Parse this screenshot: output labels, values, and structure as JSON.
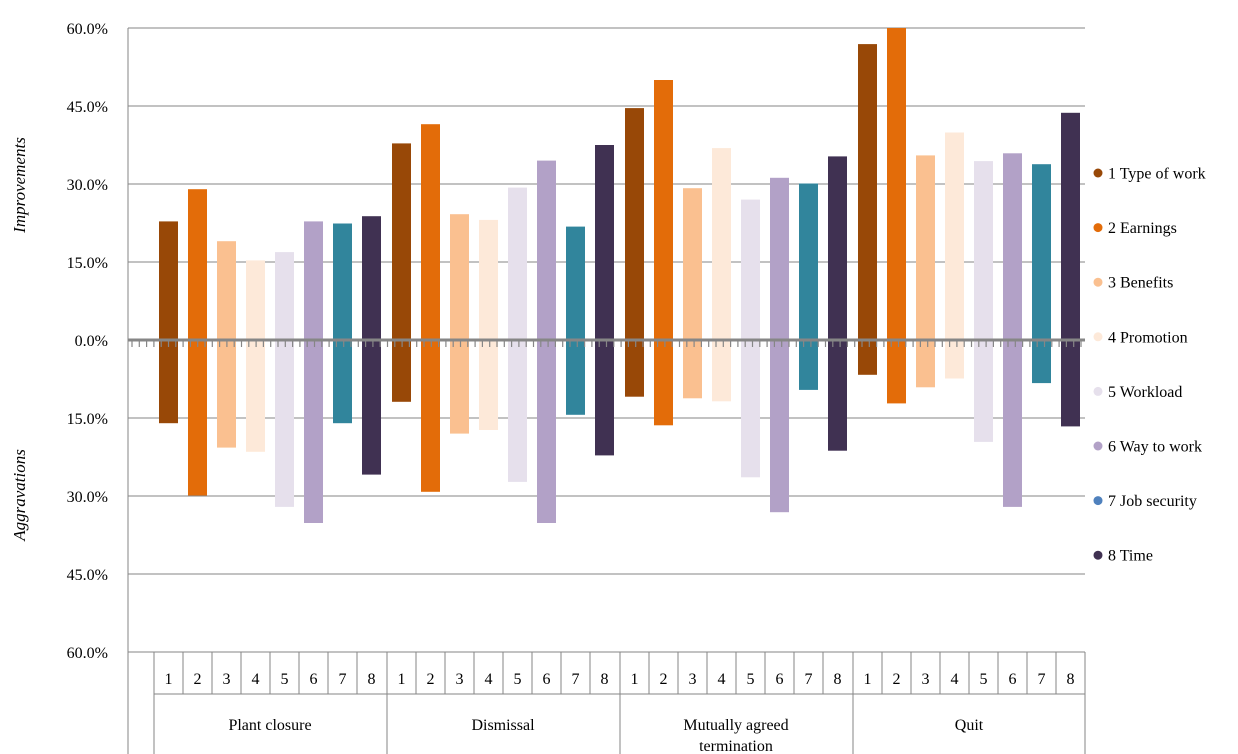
{
  "chart_data": {
    "type": "bar",
    "bar_style": "floating range bars (improvements above zero, aggravations below zero)",
    "y_axis_labels": {
      "upper": "Improvements",
      "lower": "Aggravations"
    },
    "yticks": [
      "60.0%",
      "45.0%",
      "30.0%",
      "15.0%",
      "0.0%",
      "15.0%",
      "30.0%",
      "45.0%",
      "60.0%"
    ],
    "ylim": [
      -60,
      60
    ],
    "grid": true,
    "legend_position": "right",
    "groups": [
      "Plant closure",
      "Dismissal",
      "Mutually agreed termination",
      "Quit"
    ],
    "subcategories": [
      "1",
      "2",
      "3",
      "4",
      "5",
      "6",
      "7",
      "8"
    ],
    "series": [
      {
        "name": "1 Type of work",
        "color": "#984807",
        "improvements": [
          22.8,
          37.8,
          44.6,
          56.9
        ],
        "aggravations": [
          -16.0,
          -11.9,
          -10.9,
          -6.7
        ]
      },
      {
        "name": "2 Earnings",
        "color": "#E36C09",
        "improvements": [
          29.0,
          41.5,
          50.0,
          60.0
        ],
        "aggravations": [
          -29.9,
          -29.2,
          -16.4,
          -12.2
        ]
      },
      {
        "name": "3 Benefits",
        "color": "#FAC090",
        "improvements": [
          19.0,
          24.2,
          29.2,
          35.5
        ],
        "aggravations": [
          -20.7,
          -18.0,
          -11.2,
          -9.1
        ]
      },
      {
        "name": "4 Promotion",
        "color": "#FDE9D9",
        "improvements": [
          15.3,
          23.1,
          36.9,
          39.9
        ],
        "aggravations": [
          -21.5,
          -17.3,
          -11.8,
          -7.4
        ]
      },
      {
        "name": "5 Workload",
        "color": "#E6E0EC",
        "improvements": [
          16.9,
          29.3,
          27.0,
          34.4
        ],
        "aggravations": [
          -32.1,
          -27.3,
          -26.4,
          -19.6
        ]
      },
      {
        "name": "6 Way to work",
        "color": "#B2A1C7",
        "improvements": [
          22.8,
          34.5,
          31.2,
          35.9
        ],
        "aggravations": [
          -35.2,
          -35.2,
          -33.1,
          -32.1
        ]
      },
      {
        "name": "7 Job security",
        "color": "#31859C",
        "improvements": [
          22.4,
          21.8,
          30.1,
          33.8
        ],
        "aggravations": [
          -16.0,
          -14.4,
          -9.6,
          -8.3
        ]
      },
      {
        "name": "8 Time",
        "color": "#403152",
        "improvements": [
          23.8,
          37.5,
          35.3,
          43.7
        ],
        "aggravations": [
          -25.9,
          -22.2,
          -21.3,
          -16.6
        ]
      }
    ],
    "legend_marker_colors": [
      "#984807",
      "#E36C09",
      "#FAC090",
      "#FDE9D9",
      "#E6E0EC",
      "#B2A1C7",
      "#4F81BD",
      "#403152"
    ]
  }
}
